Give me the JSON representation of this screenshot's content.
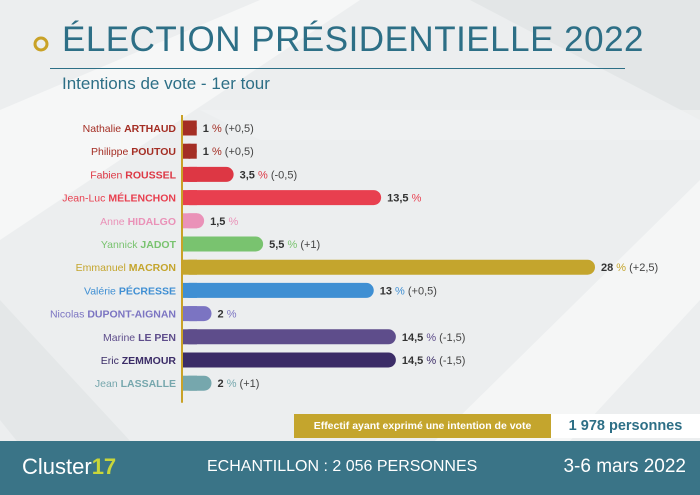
{
  "header": {
    "title": "ÉLECTION PRÉSIDENTIELLE 2022",
    "subtitle": "Intentions de vote - 1er tour"
  },
  "chart_data": {
    "type": "bar",
    "orientation": "horizontal",
    "title": "ÉLECTION PRÉSIDENTIELLE 2022",
    "subtitle": "Intentions de vote - 1er tour",
    "unit": "%",
    "xlim": [
      0,
      28
    ],
    "categories": [
      {
        "first": "Nathalie",
        "last": "ARTHAUD",
        "value": 1,
        "value_label": "1",
        "change": "(+0,5)",
        "color": "#a42e24"
      },
      {
        "first": "Philippe",
        "last": "POUTOU",
        "value": 1,
        "value_label": "1",
        "change": "(+0,5)",
        "color": "#a42e24"
      },
      {
        "first": "Fabien",
        "last": "ROUSSEL",
        "value": 3.5,
        "value_label": "3,5",
        "change": "(-0,5)",
        "color": "#dd3744"
      },
      {
        "first": "Jean-Luc",
        "last": "MÉLENCHON",
        "value": 13.5,
        "value_label": "13,5",
        "change": "",
        "color": "#e83f4f"
      },
      {
        "first": "Anne",
        "last": "HIDALGO",
        "value": 1.5,
        "value_label": "1,5",
        "change": "",
        "color": "#ea92b8"
      },
      {
        "first": "Yannick",
        "last": "JADOT",
        "value": 5.5,
        "value_label": "5,5",
        "change": "(+1)",
        "color": "#79c36f"
      },
      {
        "first": "Emmanuel",
        "last": "MACRON",
        "value": 28,
        "value_label": "28",
        "change": "(+2,5)",
        "color": "#c4a52d"
      },
      {
        "first": "Valérie",
        "last": "PÉCRESSE",
        "value": 13,
        "value_label": "13",
        "change": "(+0,5)",
        "color": "#3f8fd3"
      },
      {
        "first": "Nicolas",
        "last": "DUPONT-AIGNAN",
        "value": 2,
        "value_label": "2",
        "change": "",
        "color": "#7b74c2"
      },
      {
        "first": "Marine",
        "last": "LE PEN",
        "value": 14.5,
        "value_label": "14,5",
        "change": "(-1,5)",
        "color": "#5e4d8b"
      },
      {
        "first": "Eric",
        "last": "ZEMMOUR",
        "value": 14.5,
        "value_label": "14,5",
        "change": "(-1,5)",
        "color": "#3b2c67"
      },
      {
        "first": "Jean",
        "last": "LASSALLE",
        "value": 2,
        "value_label": "2",
        "change": "(+1)",
        "color": "#76a7ad"
      }
    ],
    "grid": false,
    "legend": "none"
  },
  "sample_box": {
    "label": "Effectif ayant exprimé une intention de vote",
    "value": "1 978 personnes"
  },
  "footer": {
    "logo_text": "Cluster",
    "logo_number": "17",
    "sample": "ECHANTILLON : 2 056 PERSONNES",
    "date": "3-6 mars 2022"
  },
  "colors": {
    "title": "#2d6f86",
    "accent": "#c9a227",
    "footer_bg": "#3a7487",
    "axis": "#c9a227"
  }
}
